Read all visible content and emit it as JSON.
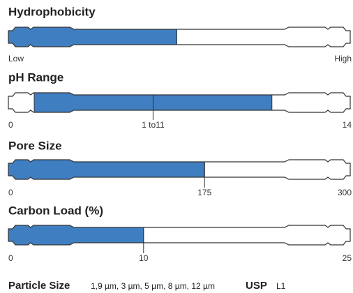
{
  "chart_data": [
    {
      "type": "gauge",
      "title": "Hydrophobicity",
      "values": [
        0.5
      ],
      "xlim": [
        0,
        1
      ],
      "xticks": [
        {
          "value": 0,
          "label": "Low"
        },
        {
          "value": 1,
          "label": "High"
        }
      ],
      "color": "#3f7fc1"
    },
    {
      "type": "gauge",
      "title": "pH Range",
      "values": [
        1,
        11
      ],
      "xlim": [
        0,
        14
      ],
      "xticks": [
        0,
        {
          "value": 6,
          "label": "1 to11"
        },
        14
      ],
      "color": "#3f7fc1"
    },
    {
      "type": "gauge",
      "title": "Pore Size",
      "values": [
        175
      ],
      "xlim": [
        0,
        300
      ],
      "xticks": [
        0,
        175,
        300
      ],
      "color": "#3f7fc1"
    },
    {
      "type": "gauge",
      "title": "Carbon Load (%)",
      "values": [
        10
      ],
      "xlim": [
        0,
        25
      ],
      "xticks": [
        0,
        10,
        25
      ],
      "color": "#3f7fc1"
    }
  ],
  "footer": {
    "particle_label": "Particle Size",
    "particle_sizes": "1,9 µm, 3 µm, 5 µm, 8 µm, 12 µm",
    "usp_label": "USP",
    "usp_value": "L1"
  }
}
